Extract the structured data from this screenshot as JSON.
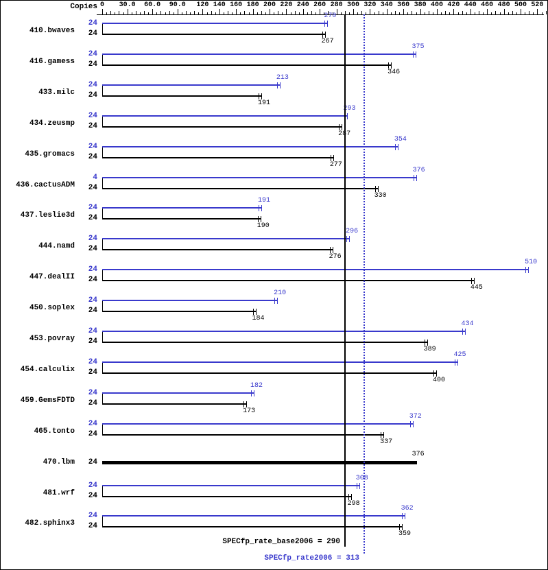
{
  "colors": {
    "peak": "#3939cc",
    "base": "#000000",
    "background": "#ffffff",
    "border": "#000000"
  },
  "header": {
    "copies_label": "Copies"
  },
  "chart_data": {
    "type": "bar",
    "orientation": "horizontal",
    "series": [
      {
        "name": "peak",
        "color_name": "blue"
      },
      {
        "name": "base",
        "color_name": "black"
      }
    ],
    "axis": {
      "min": 0,
      "max": 530,
      "minor_step": 5,
      "major": [
        {
          "label": "0",
          "value": 0
        },
        {
          "label": "30.0",
          "value": 30
        },
        {
          "label": "60.0",
          "value": 60
        },
        {
          "label": "90.0",
          "value": 90
        },
        {
          "label": "120",
          "value": 120
        },
        {
          "label": "140",
          "value": 140
        },
        {
          "label": "160",
          "value": 160
        },
        {
          "label": "180",
          "value": 180
        },
        {
          "label": "200",
          "value": 200
        },
        {
          "label": "220",
          "value": 220
        },
        {
          "label": "240",
          "value": 240
        },
        {
          "label": "260",
          "value": 260
        },
        {
          "label": "280",
          "value": 280
        },
        {
          "label": "300",
          "value": 300
        },
        {
          "label": "320",
          "value": 320
        },
        {
          "label": "340",
          "value": 340
        },
        {
          "label": "360",
          "value": 360
        },
        {
          "label": "380",
          "value": 380
        },
        {
          "label": "400",
          "value": 400
        },
        {
          "label": "420",
          "value": 420
        },
        {
          "label": "440",
          "value": 440
        },
        {
          "label": "460",
          "value": 460
        },
        {
          "label": "480",
          "value": 480
        },
        {
          "label": "500",
          "value": 500
        },
        {
          "label": "520",
          "value": 520
        }
      ]
    },
    "benchmarks": [
      {
        "name": "410.bwaves",
        "peak": {
          "copies": "24",
          "value": 270
        },
        "base": {
          "copies": "24",
          "value": 267
        }
      },
      {
        "name": "416.gamess",
        "peak": {
          "copies": "24",
          "value": 375
        },
        "base": {
          "copies": "24",
          "value": 346
        }
      },
      {
        "name": "433.milc",
        "peak": {
          "copies": "24",
          "value": 213
        },
        "base": {
          "copies": "24",
          "value": 191
        }
      },
      {
        "name": "434.zeusmp",
        "peak": {
          "copies": "24",
          "value": 293
        },
        "base": {
          "copies": "24",
          "value": 287
        }
      },
      {
        "name": "435.gromacs",
        "peak": {
          "copies": "24",
          "value": 354
        },
        "base": {
          "copies": "24",
          "value": 277
        }
      },
      {
        "name": "436.cactusADM",
        "peak": {
          "copies": "4",
          "value": 376
        },
        "base": {
          "copies": "24",
          "value": 330
        }
      },
      {
        "name": "437.leslie3d",
        "peak": {
          "copies": "24",
          "value": 191
        },
        "base": {
          "copies": "24",
          "value": 190
        }
      },
      {
        "name": "444.namd",
        "peak": {
          "copies": "24",
          "value": 296
        },
        "base": {
          "copies": "24",
          "value": 276
        }
      },
      {
        "name": "447.dealII",
        "peak": {
          "copies": "24",
          "value": 510
        },
        "base": {
          "copies": "24",
          "value": 445
        }
      },
      {
        "name": "450.soplex",
        "peak": {
          "copies": "24",
          "value": 210
        },
        "base": {
          "copies": "24",
          "value": 184
        }
      },
      {
        "name": "453.povray",
        "peak": {
          "copies": "24",
          "value": 434
        },
        "base": {
          "copies": "24",
          "value": 389
        }
      },
      {
        "name": "454.calculix",
        "peak": {
          "copies": "24",
          "value": 425
        },
        "base": {
          "copies": "24",
          "value": 400
        }
      },
      {
        "name": "459.GemsFDTD",
        "peak": {
          "copies": "24",
          "value": 182
        },
        "base": {
          "copies": "24",
          "value": 173
        }
      },
      {
        "name": "465.tonto",
        "peak": {
          "copies": "24",
          "value": 372
        },
        "base": {
          "copies": "24",
          "value": 337
        }
      },
      {
        "name": "470.lbm",
        "single": {
          "copies": "24",
          "value": 376
        }
      },
      {
        "name": "481.wrf",
        "peak": {
          "copies": "24",
          "value": 308
        },
        "base": {
          "copies": "24",
          "value": 298
        }
      },
      {
        "name": "482.sphinx3",
        "peak": {
          "copies": "24",
          "value": 362
        },
        "base": {
          "copies": "24",
          "value": 359
        }
      }
    ],
    "reference_lines": [
      {
        "label": "SPECfp_rate_base2006 = 290",
        "value": 290,
        "style": "solid",
        "color_name": "black"
      },
      {
        "label": "SPECfp_rate2006 = 313",
        "value": 313,
        "style": "dotted",
        "color_name": "blue"
      }
    ]
  }
}
